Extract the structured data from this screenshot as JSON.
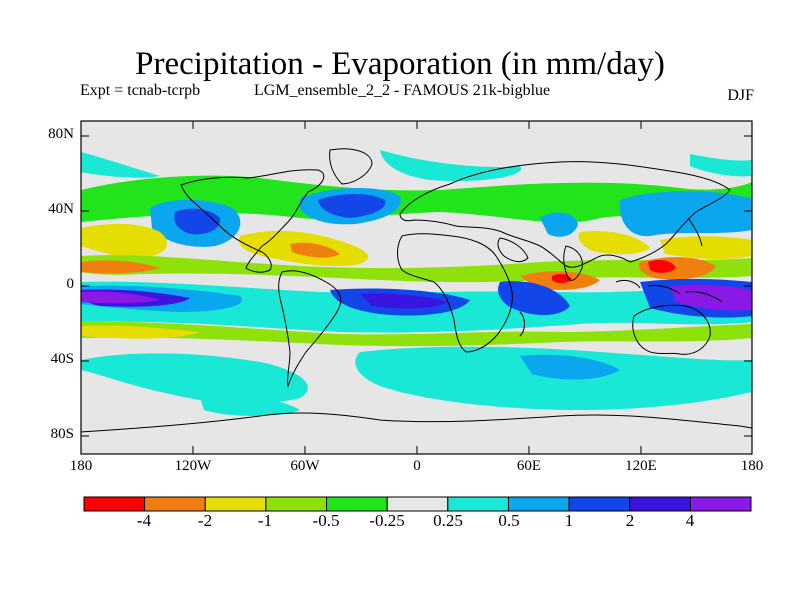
{
  "title": "Precipitation - Evaporation (in mm/day)",
  "experiment": "Expt = tcnab-tcrpb",
  "run": "LGM_ensemble_2_2 - FAMOUS 21k-bigblue",
  "season": "DJF",
  "y_ticks": [
    "80N",
    "40N",
    "0",
    "40S",
    "80S"
  ],
  "x_ticks": [
    "180",
    "120W",
    "60W",
    "0",
    "60E",
    "120E",
    "180"
  ],
  "colorbar": {
    "colors": [
      "#ff0000",
      "#f07f10",
      "#e5dc00",
      "#8ee10b",
      "#21e41a",
      "#e6e6e6",
      "#19e8d7",
      "#0aa6ee",
      "#1246e8",
      "#3b14e0",
      "#8a18e6"
    ],
    "labels": [
      "-4",
      "-2",
      "-1",
      "-0.5",
      "-0.25",
      "0.25",
      "0.5",
      "1",
      "2",
      "4"
    ]
  },
  "chart_data": {
    "type": "heatmap",
    "title": "Precipitation - Evaporation (in mm/day)",
    "variable": "P - E anomaly",
    "units": "mm/day",
    "season": "DJF",
    "x_range_deg": [
      -180,
      180
    ],
    "y_range_deg": [
      -90,
      90
    ],
    "levels": [
      -4,
      -2,
      -1,
      -0.5,
      -0.25,
      0.25,
      0.5,
      1,
      2,
      4
    ],
    "features": [
      {
        "region": "North Pacific 40N",
        "value": 1
      },
      {
        "region": "North Atlantic 45N",
        "value": 2
      },
      {
        "region": "Tropical Pacific 5S",
        "value": 4
      },
      {
        "region": "Tropical Atlantic 5S",
        "value": 2
      },
      {
        "region": "Indian Ocean 10S",
        "value": 2
      },
      {
        "region": "Western Pacific 5S",
        "value": 4
      },
      {
        "region": "Western Pacific 5N",
        "value": -2
      },
      {
        "region": "Equatorial Indian 5N",
        "value": -2
      },
      {
        "region": "Southern Ocean 45S",
        "value": 0.5
      }
    ]
  }
}
